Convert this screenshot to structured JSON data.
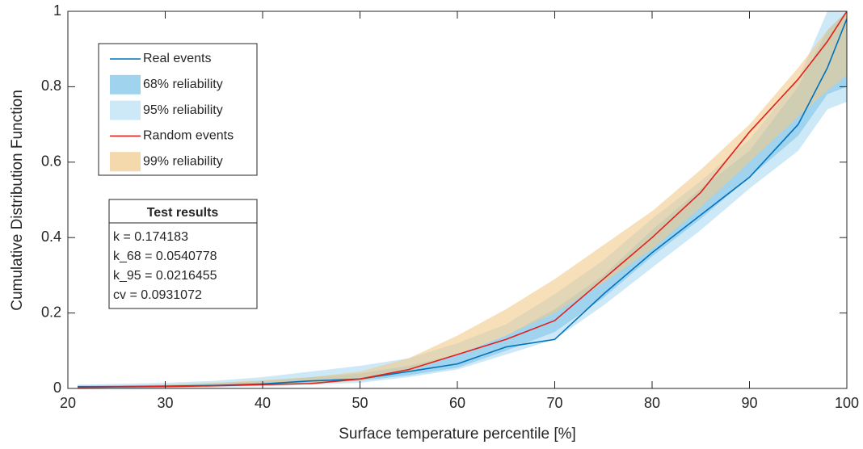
{
  "chart_data": {
    "type": "line",
    "x_label": "Surface temperature percentile [%]",
    "y_label": "Cumulative Distribution Function",
    "x": [
      21,
      25,
      30,
      35,
      40,
      45,
      50,
      55,
      60,
      65,
      70,
      75,
      80,
      85,
      90,
      95,
      98,
      100
    ],
    "xlim": [
      20,
      100
    ],
    "xticks": [
      20,
      30,
      40,
      50,
      60,
      70,
      80,
      90,
      100
    ],
    "ylim": [
      0,
      1
    ],
    "yticks": [
      0,
      0.2,
      0.4,
      0.6,
      0.8,
      1
    ],
    "series": [
      {
        "name": "Real events",
        "type": "line",
        "color": "#0072bd",
        "values": [
          0.005,
          0.005,
          0.006,
          0.008,
          0.012,
          0.02,
          0.025,
          0.045,
          0.065,
          0.11,
          0.13,
          0.25,
          0.36,
          0.46,
          0.56,
          0.7,
          0.85,
          0.98
        ]
      },
      {
        "name": "68% reliability",
        "type": "band",
        "color": "#9fd3ee",
        "lower": [
          0.002,
          0.003,
          0.004,
          0.006,
          0.01,
          0.015,
          0.02,
          0.035,
          0.055,
          0.1,
          0.15,
          0.24,
          0.35,
          0.45,
          0.56,
          0.67,
          0.78,
          0.8
        ],
        "upper": [
          0.006,
          0.008,
          0.01,
          0.014,
          0.02,
          0.03,
          0.04,
          0.06,
          0.09,
          0.14,
          0.21,
          0.3,
          0.42,
          0.53,
          0.63,
          0.8,
          0.95,
          1
        ]
      },
      {
        "name": "95% reliability",
        "type": "band",
        "color": "#cde9f7",
        "lower": [
          0,
          0.001,
          0.002,
          0.003,
          0.006,
          0.01,
          0.015,
          0.03,
          0.05,
          0.09,
          0.13,
          0.22,
          0.32,
          0.42,
          0.53,
          0.63,
          0.74,
          0.76
        ],
        "upper": [
          0.01,
          0.012,
          0.015,
          0.02,
          0.03,
          0.045,
          0.06,
          0.08,
          0.12,
          0.17,
          0.25,
          0.34,
          0.45,
          0.55,
          0.66,
          0.82,
          1,
          1
        ]
      },
      {
        "name": "Random events",
        "type": "line",
        "color": "#e3201b",
        "values": [
          0.003,
          0.004,
          0.005,
          0.007,
          0.01,
          0.013,
          0.025,
          0.05,
          0.09,
          0.13,
          0.18,
          0.29,
          0.4,
          0.52,
          0.68,
          0.82,
          0.92,
          1
        ]
      },
      {
        "name": "99% reliability",
        "type": "band",
        "color": "#f0c98a",
        "lower": [
          0.001,
          0.002,
          0.003,
          0.005,
          0.008,
          0.013,
          0.02,
          0.045,
          0.09,
          0.14,
          0.2,
          0.28,
          0.37,
          0.48,
          0.6,
          0.72,
          0.79,
          0.83
        ],
        "upper": [
          0.005,
          0.007,
          0.01,
          0.015,
          0.022,
          0.03,
          0.045,
          0.08,
          0.14,
          0.21,
          0.29,
          0.38,
          0.47,
          0.58,
          0.7,
          0.85,
          0.95,
          1
        ]
      }
    ],
    "test_results": {
      "title": "Test results",
      "lines": [
        "k = 0.174183",
        "k_68 = 0.0540778",
        "k_95 = 0.0216455",
        "cv = 0.0931072"
      ]
    }
  }
}
